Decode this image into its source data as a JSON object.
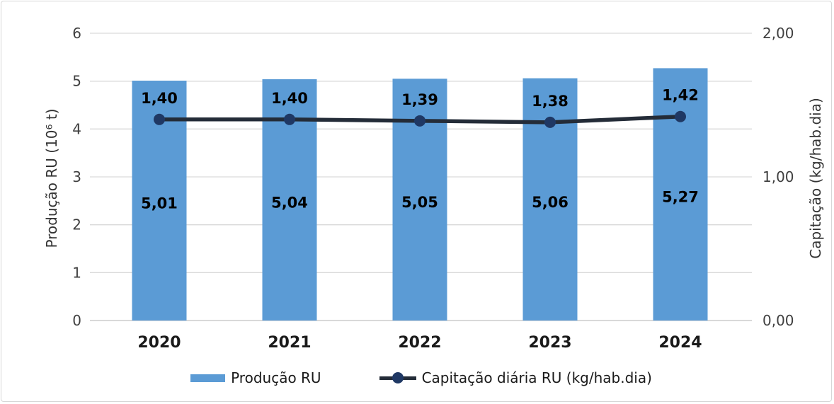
{
  "frame": {
    "background": "#ffffff",
    "border_color": "#d7d7d7"
  },
  "chart_data": {
    "type": "bar",
    "subtype": "combo-bar-line-dual-axis",
    "title": "",
    "categories": [
      "2020",
      "2021",
      "2022",
      "2023",
      "2024"
    ],
    "series": [
      {
        "name": "Produção RU",
        "type": "bar",
        "axis": "left",
        "values": [
          5.01,
          5.04,
          5.05,
          5.06,
          5.27
        ],
        "labels": [
          "5,01",
          "5,04",
          "5,05",
          "5,06",
          "5,27"
        ],
        "color": "#5B9BD5"
      },
      {
        "name": "Capitação diária RU (kg/hab.dia)",
        "type": "line",
        "axis": "right",
        "values": [
          1.4,
          1.4,
          1.39,
          1.38,
          1.42
        ],
        "labels": [
          "1,40",
          "1,40",
          "1,39",
          "1,38",
          "1,42"
        ],
        "line_color": "#242C38",
        "marker_color": "#1F3864"
      }
    ],
    "left_axis": {
      "title": "Produção RU (10⁶ t)",
      "min": 0,
      "max": 6,
      "step": 1,
      "tick_labels": [
        "0",
        "1",
        "2",
        "3",
        "4",
        "5",
        "6"
      ]
    },
    "right_axis": {
      "title": "Capitação (kg/hab.dia)",
      "min": 0,
      "max": 2,
      "labeled_ticks": [
        {
          "value": 0,
          "label": "0,00"
        },
        {
          "value": 1,
          "label": "1,00"
        },
        {
          "value": 2,
          "label": "2,00"
        }
      ]
    },
    "grid": true,
    "gridline_color": "#D9D9D9",
    "baseline_color": "#C2C2C2",
    "tick_label_color": "#3F3F3F",
    "data_label_color": "#000000",
    "legend_position": "bottom"
  }
}
